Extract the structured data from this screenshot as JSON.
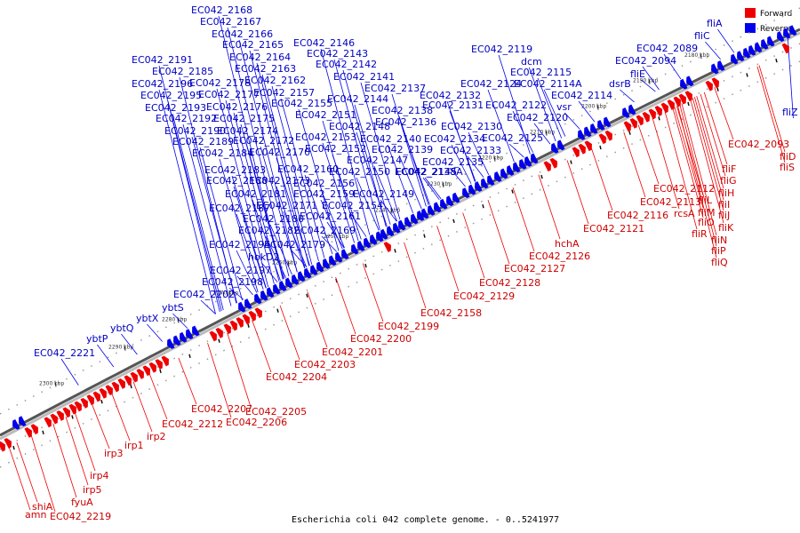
{
  "caption": "Escherichia coli 042 complete genome. - 0..5241977",
  "legend": {
    "forward": {
      "label": "Forward",
      "color": "#ee0000"
    },
    "reverse": {
      "label": "Reverse",
      "color": "#0000ee"
    }
  },
  "ticks": [
    "2180 kbp",
    "2190 kbp",
    "2200 kbp",
    "2210 kbp",
    "2220 kbp",
    "2230 kbp",
    "2240 kbp",
    "2250 kbp",
    "2260 kbp",
    "2270 kbp",
    "2280 kbp",
    "2290 kbp",
    "2300 kbp"
  ],
  "reverse_genes": [
    "EC042_2168",
    "EC042_2167",
    "EC042_2166",
    "EC042_2165",
    "EC042_2164",
    "EC042_2163",
    "EC042_2162",
    "EC042_2157",
    "EC042_2146",
    "EC042_2143",
    "EC042_2142",
    "EC042_2141",
    "EC042_2144",
    "EC042_2137",
    "EC042_2138",
    "EC042_2136",
    "EC042_2148",
    "EC042_2140",
    "EC042_2139",
    "EC042_2147",
    "EC042_2145",
    "EC042_2149",
    "EC042_2154",
    "EC042_2150",
    "EC042_2152",
    "EC042_2153",
    "EC042_2151",
    "EC042_2155",
    "EC042_2156",
    "EC042_2159",
    "EC042_2160",
    "EC042_2161",
    "EC042_2169",
    "EC042_2171",
    "EC042_2173",
    "EC042_2170",
    "EC042_2172",
    "EC042_2174",
    "EC042_2175",
    "EC042_2176",
    "EC042_2177",
    "EC042_2178",
    "EC042_2191",
    "EC042_2185",
    "EC042_2196",
    "EC042_2195",
    "EC042_2193",
    "EC042_2192",
    "EC042_2190",
    "EC042_2189",
    "EC042_2184",
    "EC042_2183",
    "EC042_2188",
    "EC042_2181",
    "EC042_2187",
    "EC042_2180",
    "EC042_2182",
    "EC042_2179",
    "EC042_2194",
    "hokD2",
    "EC042_2197",
    "EC042_2198",
    "EC042_2202",
    "ybtS",
    "ybtX",
    "ybtQ",
    "ybtP",
    "EC042_2221",
    "EC042_2119",
    "dcm",
    "EC042_2115",
    "EC042_2124",
    "EC042_2114A",
    "EC042_2132",
    "EC042_2131",
    "EC042_2122",
    "EC042_2120",
    "EC042_2130",
    "EC042_2134",
    "EC042_2125",
    "EC042_2133",
    "EC042_2135",
    "EC042_2138A",
    "vsr",
    "EC042_2114",
    "dsrB",
    "fliE",
    "EC042_2094",
    "EC042_2089",
    "fliC",
    "fliA",
    "fliZ"
  ],
  "forward_genes": [
    "EC042_2093",
    "fliD",
    "fliS",
    "fliF",
    "fliG",
    "fliH",
    "fliI",
    "fliJ",
    "fliK",
    "EC042_2112",
    "EC042_2113",
    "fliL",
    "fliM",
    "fliO",
    "fliN",
    "fliP",
    "fliQ",
    "fliR",
    "rcsA",
    "EC042_2116",
    "EC042_2121",
    "hchA",
    "EC042_2126",
    "EC042_2127",
    "EC042_2128",
    "EC042_2129",
    "EC042_2158",
    "EC042_2199",
    "EC042_2200",
    "EC042_2201",
    "EC042_2203",
    "EC042_2204",
    "EC042_2205",
    "EC042_2206",
    "EC042_2207",
    "EC042_2212",
    "irp1",
    "irp2",
    "irp3",
    "irp4",
    "irp5",
    "fyuA",
    "shiA",
    "amn",
    "EC042_2219"
  ]
}
